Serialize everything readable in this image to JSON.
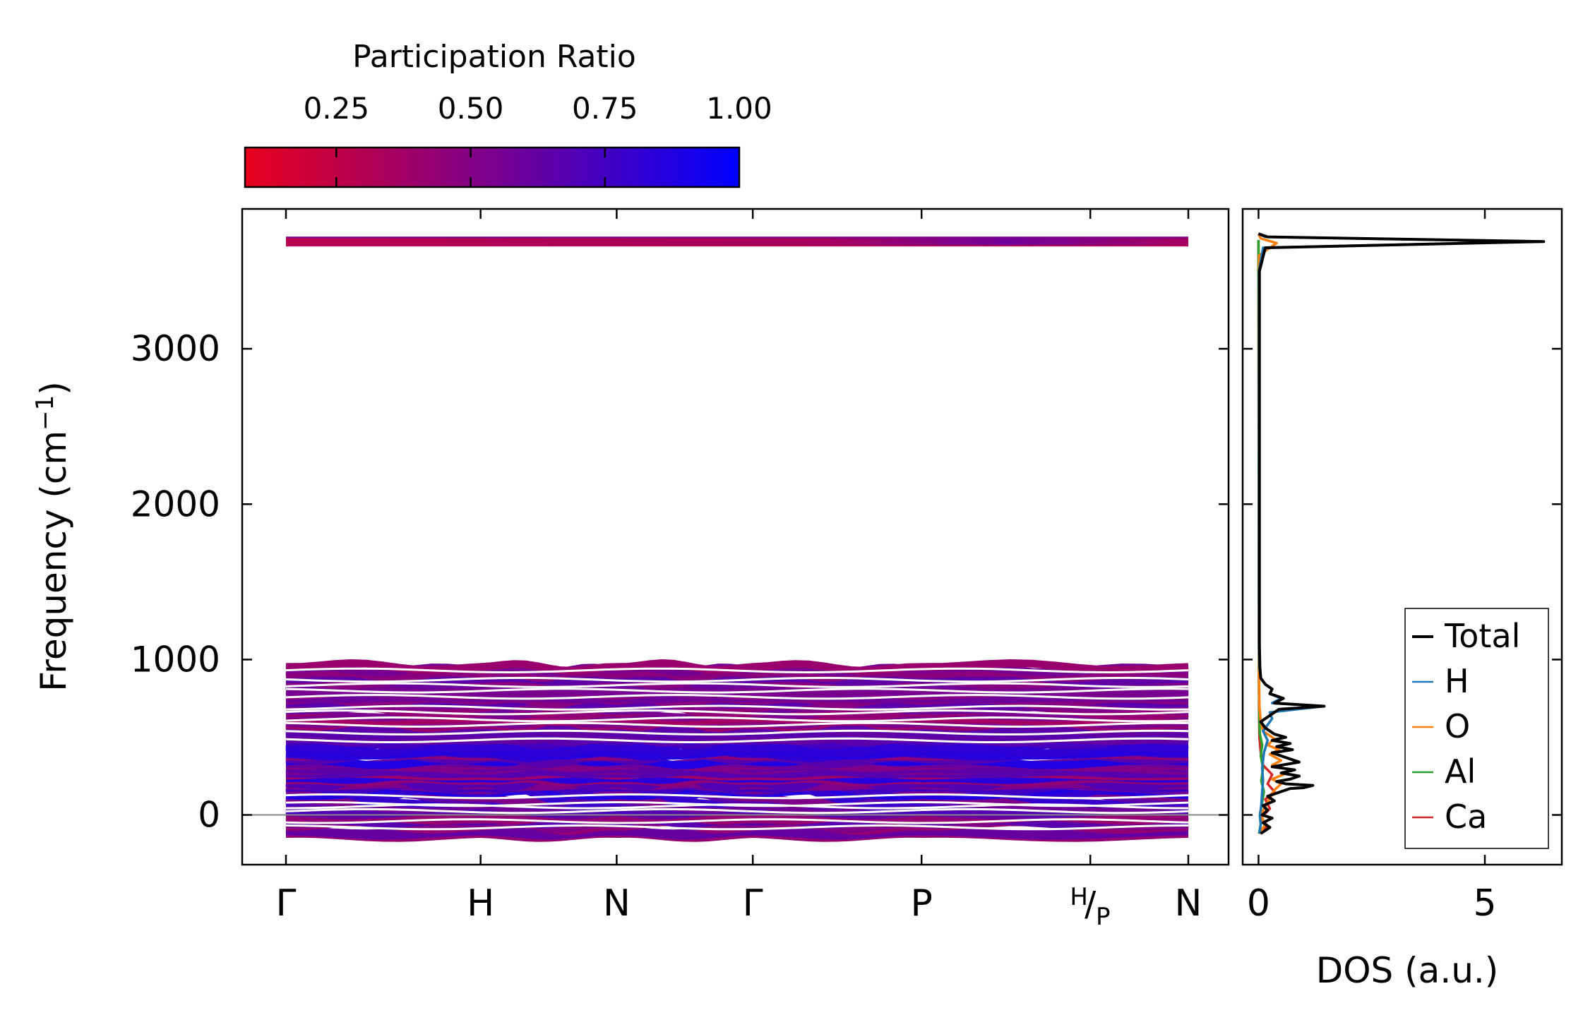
{
  "chart_data": [
    {
      "type": "colorbar",
      "title": "Participation Ratio",
      "ticks": [
        "0.25",
        "0.50",
        "0.75",
        "1.00"
      ],
      "tick_values": [
        0.25,
        0.5,
        0.75,
        1.0
      ],
      "range": [
        0.08,
        1.0
      ],
      "colors": {
        "low": "#e8001c",
        "mid": "#7a008e",
        "high": "#0000ff"
      }
    },
    {
      "type": "line",
      "name": "phonon band structure",
      "ylabel": "Frequency (cm",
      "ylabel_sup": "−1",
      "ylabel_close": ")",
      "ylim": [
        -320,
        3900
      ],
      "yticks": [
        0,
        1000,
        2000,
        3000
      ],
      "ytick_labels": [
        "0",
        "1000",
        "2000",
        "3000"
      ],
      "x_segments": [
        {
          "from": "Γ",
          "to": "H",
          "length": 1.43
        },
        {
          "from": "H",
          "to": "N",
          "length": 1.0
        },
        {
          "from": "N",
          "to": "Γ",
          "length": 1.0
        },
        {
          "from": "Γ",
          "to": "P",
          "length": 1.24
        },
        {
          "from": "P",
          "to": "H|P",
          "length": 1.24
        },
        {
          "from": "H|P",
          "to": "N",
          "length": 0.72
        }
      ],
      "kpoint_labels": [
        "Γ",
        "H",
        "N",
        "Γ",
        "P",
        "N"
      ],
      "kpoint_positions": [
        0,
        1.43,
        2.43,
        3.43,
        4.67,
        6.63
      ],
      "kpoint_split": {
        "top": "H",
        "bottom": "P",
        "position": 5.91
      },
      "zero_line": 0,
      "bands": {
        "low_branch_range": [
          -130,
          960
        ],
        "high_branch": 3690,
        "high_branch_width": 45,
        "gap_positions": [
          -80,
          -40,
          25,
          55,
          70,
          120,
          480,
          530,
          580,
          615,
          660,
          690,
          760,
          800,
          835,
          870,
          930
        ]
      }
    },
    {
      "type": "line",
      "name": "DOS",
      "xlabel": "DOS (a.u.)",
      "xlim": [
        -0.35,
        6.7
      ],
      "xticks": [
        0,
        5
      ],
      "xtick_labels": [
        "0",
        "5"
      ],
      "ylim": [
        -320,
        3900
      ],
      "legend_position": "lower-right",
      "series": [
        {
          "name": "Total",
          "color": "#000000",
          "points": [
            [
              0.05,
              -120
            ],
            [
              0.25,
              -80
            ],
            [
              0.1,
              -50
            ],
            [
              0.3,
              -20
            ],
            [
              0.08,
              0
            ],
            [
              0.2,
              30
            ],
            [
              0.1,
              60
            ],
            [
              0.35,
              90
            ],
            [
              0.2,
              120
            ],
            [
              0.5,
              150
            ],
            [
              0.7,
              170
            ],
            [
              1.0,
              175
            ],
            [
              1.2,
              190
            ],
            [
              0.6,
              200
            ],
            [
              0.4,
              215
            ],
            [
              0.7,
              230
            ],
            [
              0.9,
              250
            ],
            [
              0.5,
              270
            ],
            [
              0.8,
              290
            ],
            [
              0.3,
              310
            ],
            [
              0.9,
              340
            ],
            [
              0.6,
              370
            ],
            [
              0.3,
              400
            ],
            [
              0.75,
              420
            ],
            [
              0.4,
              440
            ],
            [
              0.7,
              460
            ],
            [
              0.3,
              480
            ],
            [
              0.6,
              500
            ],
            [
              0.35,
              520
            ],
            [
              0.15,
              560
            ],
            [
              0.05,
              600
            ],
            [
              0.25,
              640
            ],
            [
              0.45,
              680
            ],
            [
              1.45,
              700
            ],
            [
              0.35,
              720
            ],
            [
              0.55,
              750
            ],
            [
              0.25,
              780
            ],
            [
              0.3,
              810
            ],
            [
              0.15,
              840
            ],
            [
              0.05,
              880
            ],
            [
              0.03,
              950
            ],
            [
              0.02,
              1100
            ],
            [
              0.02,
              3500
            ],
            [
              0.15,
              3650
            ],
            [
              6.3,
              3690
            ],
            [
              0.2,
              3720
            ],
            [
              0.0,
              3740
            ]
          ]
        },
        {
          "name": "H",
          "color": "#1f77b4",
          "points": [
            [
              0.02,
              -120
            ],
            [
              0.05,
              -60
            ],
            [
              0.03,
              0
            ],
            [
              0.06,
              60
            ],
            [
              0.08,
              150
            ],
            [
              0.1,
              220
            ],
            [
              0.08,
              300
            ],
            [
              0.12,
              400
            ],
            [
              0.2,
              480
            ],
            [
              0.1,
              540
            ],
            [
              0.3,
              620
            ],
            [
              0.25,
              660
            ],
            [
              1.45,
              700
            ],
            [
              0.3,
              720
            ],
            [
              0.5,
              750
            ],
            [
              0.25,
              780
            ],
            [
              0.3,
              810
            ],
            [
              0.15,
              840
            ],
            [
              0.05,
              880
            ],
            [
              0.02,
              950
            ],
            [
              0.01,
              1100
            ],
            [
              0.01,
              3500
            ],
            [
              0.1,
              3650
            ],
            [
              6.1,
              3690
            ],
            [
              0.15,
              3720
            ],
            [
              0.0,
              3740
            ]
          ]
        },
        {
          "name": "O",
          "color": "#ff7f0e",
          "points": [
            [
              0.02,
              -120
            ],
            [
              0.15,
              -60
            ],
            [
              0.05,
              0
            ],
            [
              0.2,
              80
            ],
            [
              0.35,
              160
            ],
            [
              0.5,
              200
            ],
            [
              0.3,
              230
            ],
            [
              0.55,
              260
            ],
            [
              0.7,
              290
            ],
            [
              0.3,
              320
            ],
            [
              0.5,
              350
            ],
            [
              0.25,
              390
            ],
            [
              0.45,
              420
            ],
            [
              0.2,
              450
            ],
            [
              0.35,
              490
            ],
            [
              0.1,
              540
            ],
            [
              0.05,
              600
            ],
            [
              0.02,
              700
            ],
            [
              0.01,
              900
            ],
            [
              0.01,
              3600
            ],
            [
              0.4,
              3680
            ],
            [
              0.05,
              3710
            ],
            [
              0.0,
              3740
            ]
          ]
        },
        {
          "name": "Al",
          "color": "#2ca02c",
          "points": [
            [
              0.01,
              -120
            ],
            [
              0.05,
              -60
            ],
            [
              0.03,
              0
            ],
            [
              0.08,
              80
            ],
            [
              0.12,
              150
            ],
            [
              0.06,
              220
            ],
            [
              0.1,
              300
            ],
            [
              0.05,
              380
            ],
            [
              0.08,
              450
            ],
            [
              0.03,
              520
            ],
            [
              0.02,
              600
            ],
            [
              0.01,
              800
            ],
            [
              0.0,
              3700
            ]
          ]
        },
        {
          "name": "Ca",
          "color": "#d62728",
          "points": [
            [
              0.01,
              -120
            ],
            [
              0.2,
              -70
            ],
            [
              0.05,
              -20
            ],
            [
              0.25,
              40
            ],
            [
              0.15,
              100
            ],
            [
              0.35,
              150
            ],
            [
              0.2,
              200
            ],
            [
              0.3,
              260
            ],
            [
              0.1,
              320
            ],
            [
              0.05,
              400
            ],
            [
              0.02,
              500
            ],
            [
              0.01,
              700
            ],
            [
              0.0,
              3700
            ]
          ]
        }
      ]
    }
  ]
}
